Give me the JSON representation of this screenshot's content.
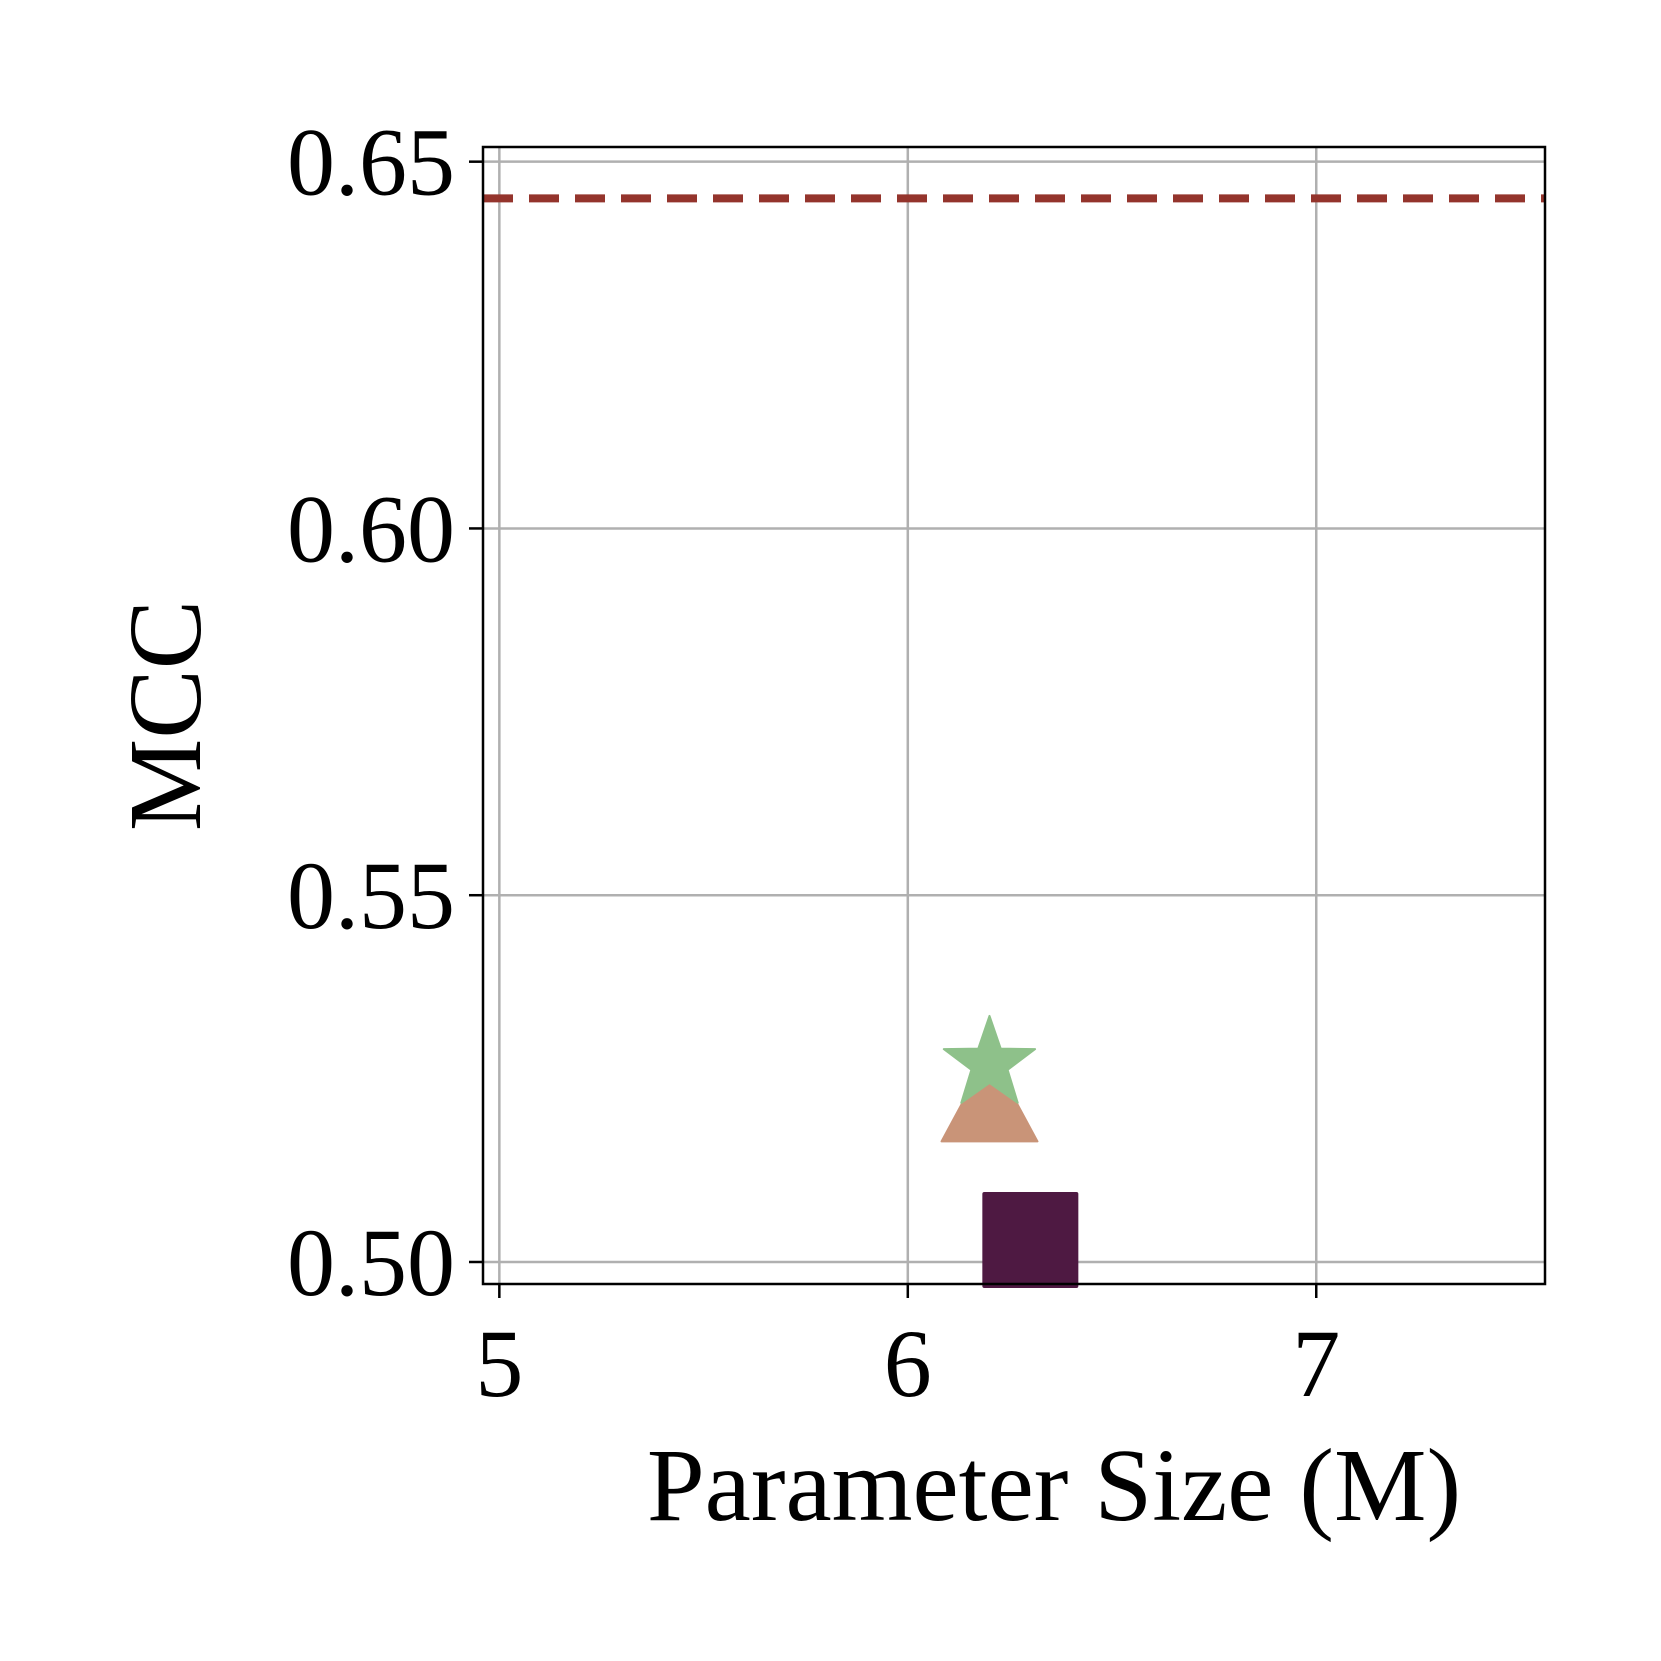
{
  "chart_data": {
    "type": "scatter",
    "title": "",
    "xlabel": "Parameter Size (M)",
    "ylabel": "MCC",
    "xlim": [
      4.96,
      7.56
    ],
    "ylim": [
      0.497,
      0.652
    ],
    "xticks": [
      5,
      6,
      7
    ],
    "xtick_labels": [
      "5",
      "6",
      "7"
    ],
    "yticks": [
      0.5,
      0.55,
      0.6,
      0.65
    ],
    "ytick_labels": [
      "0.50",
      "0.55",
      "0.60",
      "0.65"
    ],
    "grid": true,
    "legend": "none",
    "series": [
      {
        "marker": "square",
        "color": "#4e1942",
        "x": [
          6.3
        ],
        "y": [
          0.503
        ]
      },
      {
        "marker": "triangle",
        "color": "#c99478",
        "x": [
          6.2
        ],
        "y": [
          0.522
        ]
      },
      {
        "marker": "star",
        "color": "#8ec18a",
        "x": [
          6.2
        ],
        "y": [
          0.527
        ]
      }
    ],
    "reference_line": {
      "y": 0.645,
      "style": "dashed",
      "color": "#94342c"
    }
  }
}
